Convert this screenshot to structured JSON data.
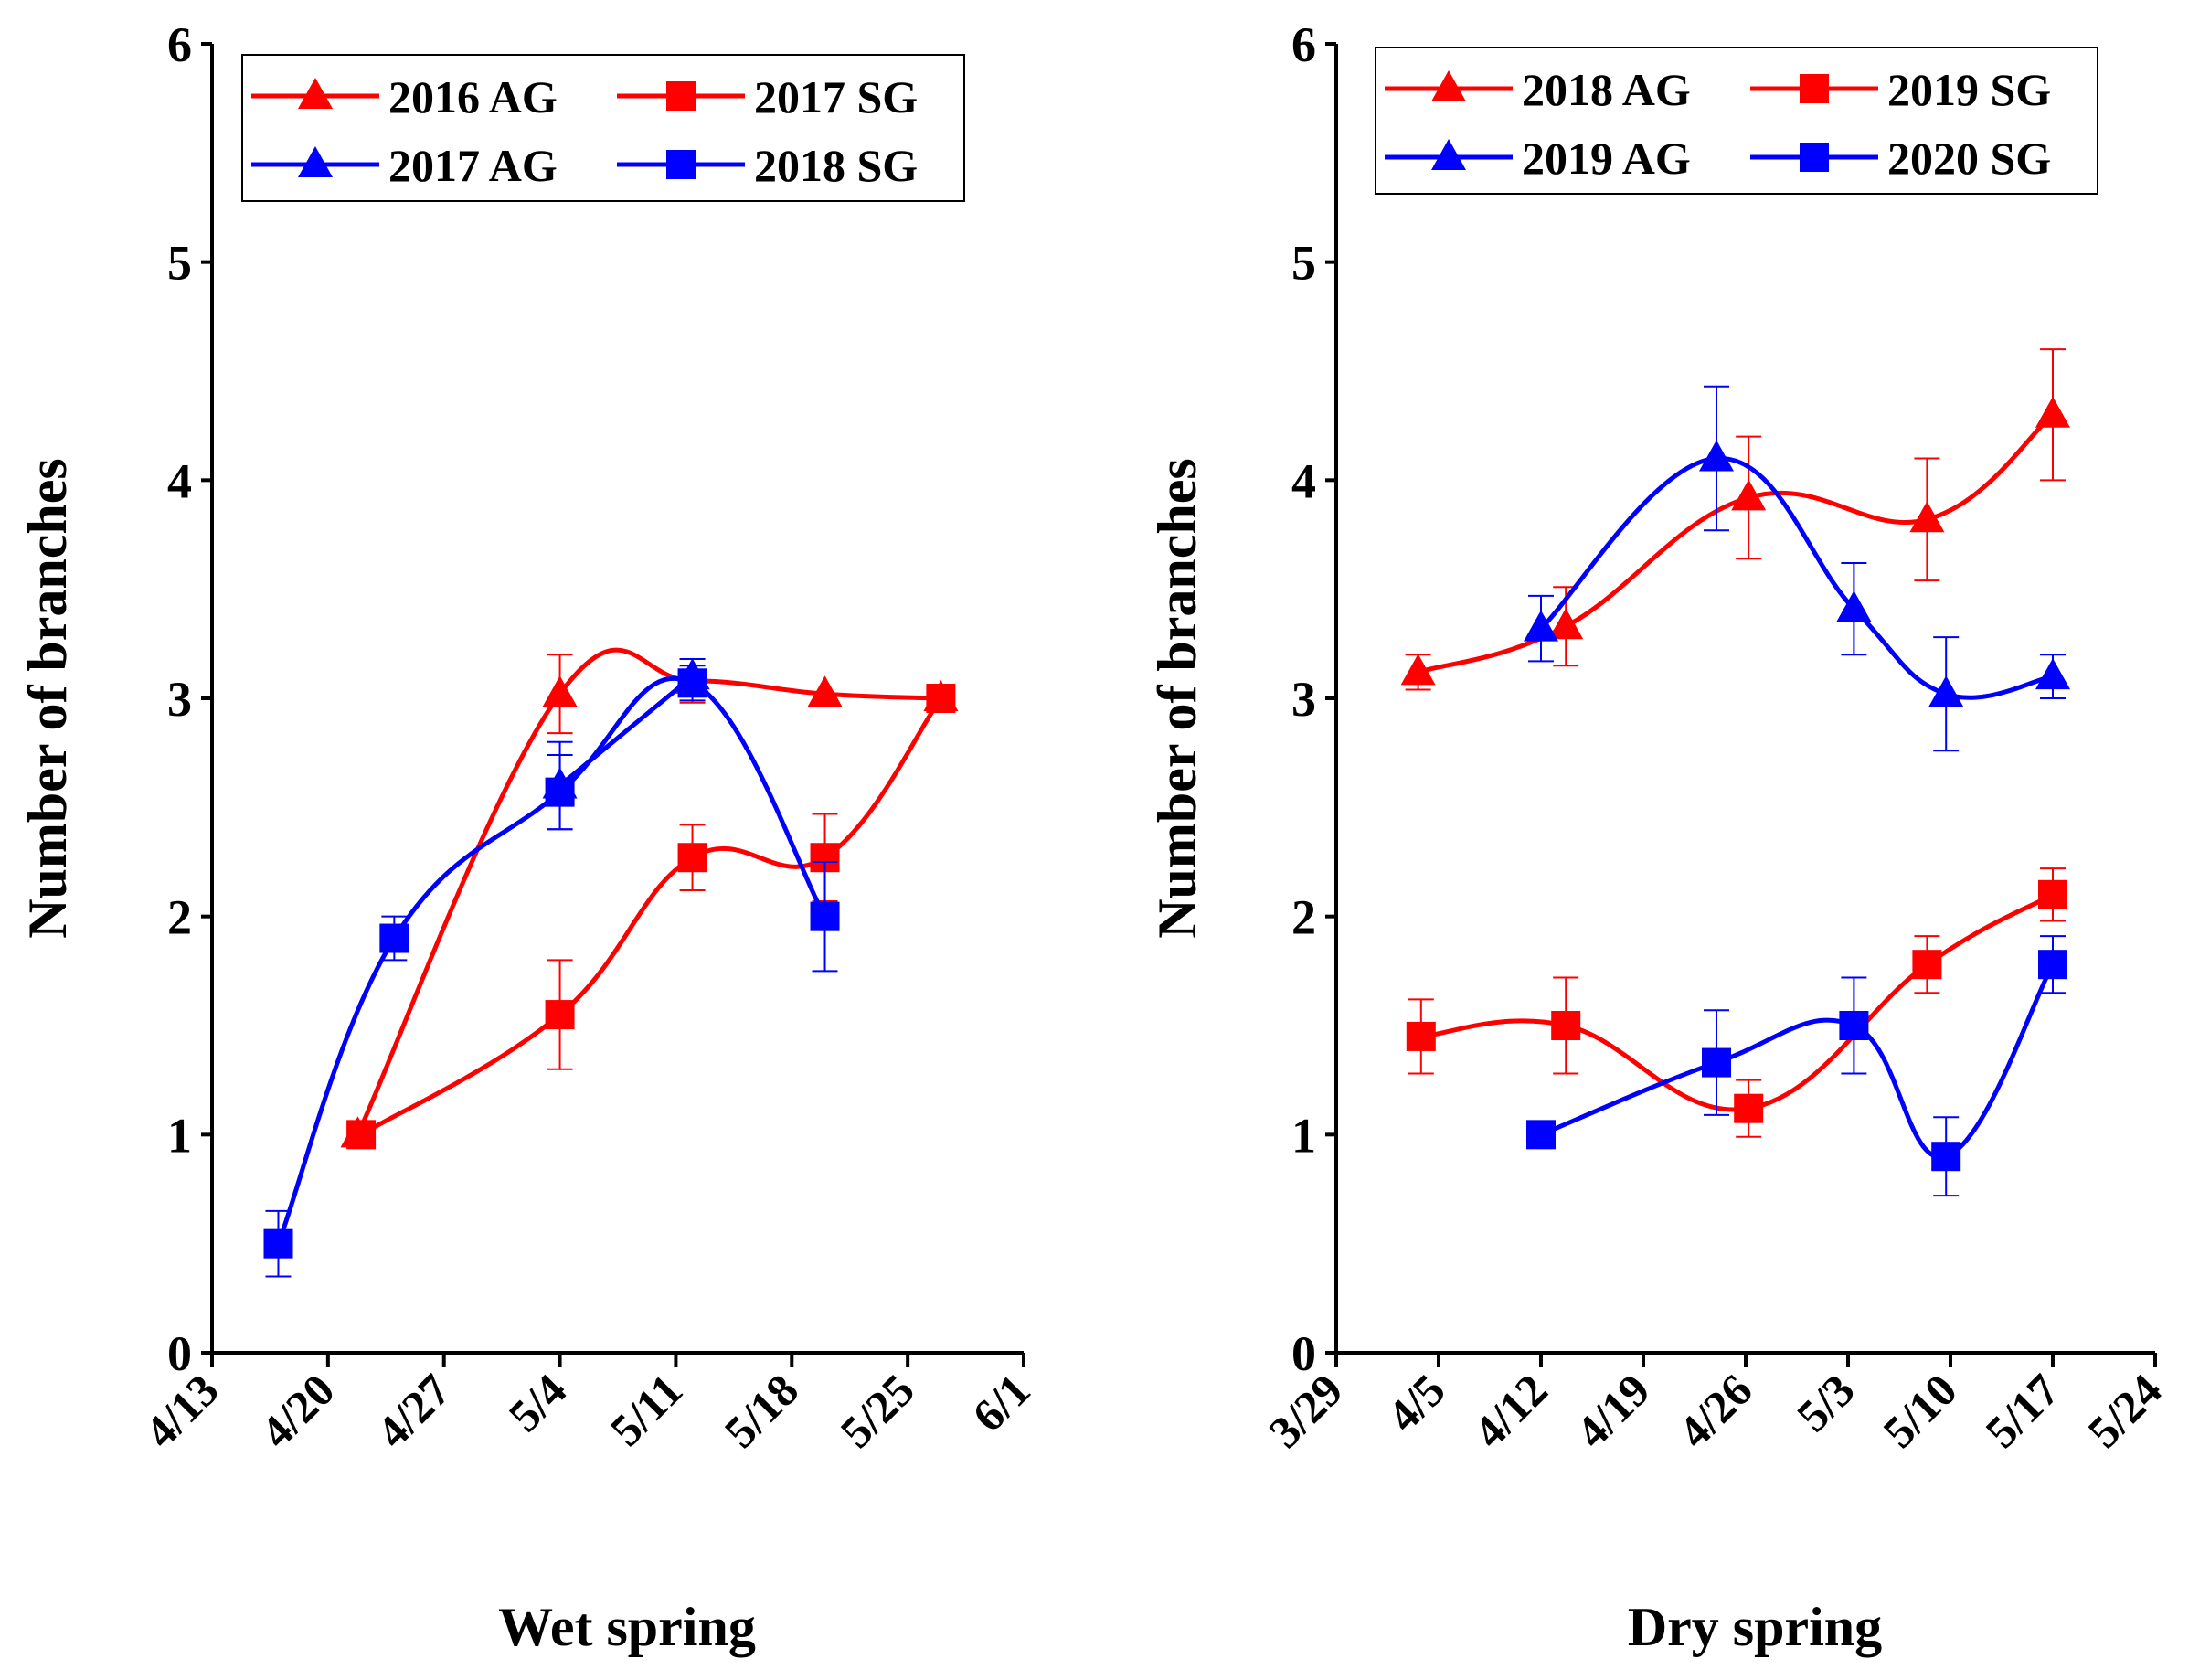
{
  "chart_data": [
    {
      "type": "line",
      "title": "",
      "xlabel": "Wet spring",
      "ylabel": "Number of branches",
      "ylim": [
        0,
        6
      ],
      "yticks": [
        "0",
        "1",
        "2",
        "3",
        "4",
        "5",
        "6"
      ],
      "xlim": [
        0,
        49
      ],
      "xticks": [
        {
          "label": "4/13",
          "day": 0
        },
        {
          "label": "4/20",
          "day": 7
        },
        {
          "label": "4/27",
          "day": 14
        },
        {
          "label": "5/4",
          "day": 21
        },
        {
          "label": "5/11",
          "day": 28
        },
        {
          "label": "5/18",
          "day": 35
        },
        {
          "label": "5/25",
          "day": 42
        },
        {
          "label": "6/1",
          "day": 49
        }
      ],
      "legend_position": "top",
      "series": [
        {
          "name": "2016 AG",
          "color": "#ff0000",
          "marker": "triangle",
          "points": [
            {
              "day": 8.8,
              "y": 1.0,
              "err": 0
            },
            {
              "day": 21,
              "y": 3.02,
              "err": 0.18
            },
            {
              "day": 29,
              "y": 3.08,
              "err": 0.1
            },
            {
              "day": 37,
              "y": 3.02,
              "err": 0
            },
            {
              "day": 44,
              "y": 3.0,
              "err": 0
            }
          ]
        },
        {
          "name": "2017 SG",
          "color": "#ff0000",
          "marker": "square",
          "points": [
            {
              "day": 9,
              "y": 1.0,
              "err": 0
            },
            {
              "day": 21,
              "y": 1.55,
              "err": 0.25
            },
            {
              "day": 29,
              "y": 2.27,
              "err": 0.15
            },
            {
              "day": 37,
              "y": 2.27,
              "err": 0.2
            },
            {
              "day": 44,
              "y": 3.0,
              "err": 0
            }
          ]
        },
        {
          "name": "2017 AG",
          "color": "#0000ff",
          "marker": "triangle",
          "points": [
            {
              "day": 21,
              "y": 2.6,
              "err": 0.2
            },
            {
              "day": 29,
              "y": 3.1,
              "err": 0.08
            }
          ]
        },
        {
          "name": "2018 SG",
          "color": "#0000ff",
          "marker": "square",
          "points": [
            {
              "day": 4,
              "y": 0.5,
              "err": 0.15
            },
            {
              "day": 11,
              "y": 1.9,
              "err": 0.1
            },
            {
              "day": 21,
              "y": 2.57,
              "err": 0.17
            },
            {
              "day": 29,
              "y": 3.07,
              "err": 0.08
            },
            {
              "day": 37,
              "y": 2.0,
              "err": 0.25
            }
          ]
        }
      ]
    },
    {
      "type": "line",
      "title": "",
      "xlabel": "Dry spring",
      "ylabel": "Number of branches",
      "ylim": [
        0,
        6
      ],
      "yticks": [
        "0",
        "1",
        "2",
        "3",
        "4",
        "5",
        "6"
      ],
      "xlim": [
        0,
        56
      ],
      "xticks": [
        {
          "label": "3/29",
          "day": 0
        },
        {
          "label": "4/5",
          "day": 7
        },
        {
          "label": "4/12",
          "day": 14
        },
        {
          "label": "4/19",
          "day": 21
        },
        {
          "label": "4/26",
          "day": 28
        },
        {
          "label": "5/3",
          "day": 35
        },
        {
          "label": "5/10",
          "day": 42
        },
        {
          "label": "5/17",
          "day": 49
        },
        {
          "label": "5/24",
          "day": 56
        }
      ],
      "legend_position": "top",
      "series": [
        {
          "name": "2018 AG",
          "color": "#ff0000",
          "marker": "triangle",
          "points": [
            {
              "day": 5.6,
              "y": 3.12,
              "err": 0.08
            },
            {
              "day": 15.7,
              "y": 3.33,
              "err": 0.18
            },
            {
              "day": 28.2,
              "y": 3.92,
              "err": 0.28
            },
            {
              "day": 40.4,
              "y": 3.82,
              "err": 0.28
            },
            {
              "day": 49,
              "y": 4.3,
              "err": 0.3
            }
          ]
        },
        {
          "name": "2019 SG",
          "color": "#ff0000",
          "marker": "square",
          "points": [
            {
              "day": 5.8,
              "y": 1.45,
              "err": 0.17
            },
            {
              "day": 15.7,
              "y": 1.5,
              "err": 0.22
            },
            {
              "day": 28.2,
              "y": 1.12,
              "err": 0.13
            },
            {
              "day": 40.4,
              "y": 1.78,
              "err": 0.13
            },
            {
              "day": 49,
              "y": 2.1,
              "err": 0.12
            }
          ]
        },
        {
          "name": "2019 AG",
          "color": "#0000ff",
          "marker": "triangle",
          "points": [
            {
              "day": 14,
              "y": 3.32,
              "err": 0.15
            },
            {
              "day": 26,
              "y": 4.1,
              "err": 0.33
            },
            {
              "day": 35.4,
              "y": 3.41,
              "err": 0.21
            },
            {
              "day": 41.7,
              "y": 3.02,
              "err": 0.26
            },
            {
              "day": 49,
              "y": 3.1,
              "err": 0.1
            }
          ]
        },
        {
          "name": "2020 SG",
          "color": "#0000ff",
          "marker": "square",
          "points": [
            {
              "day": 14,
              "y": 1.0,
              "err": 0
            },
            {
              "day": 26,
              "y": 1.33,
              "err": 0.24
            },
            {
              "day": 35.4,
              "y": 1.5,
              "err": 0.22
            },
            {
              "day": 41.7,
              "y": 0.9,
              "err": 0.18
            },
            {
              "day": 49,
              "y": 1.78,
              "err": 0.13
            }
          ]
        }
      ]
    }
  ]
}
